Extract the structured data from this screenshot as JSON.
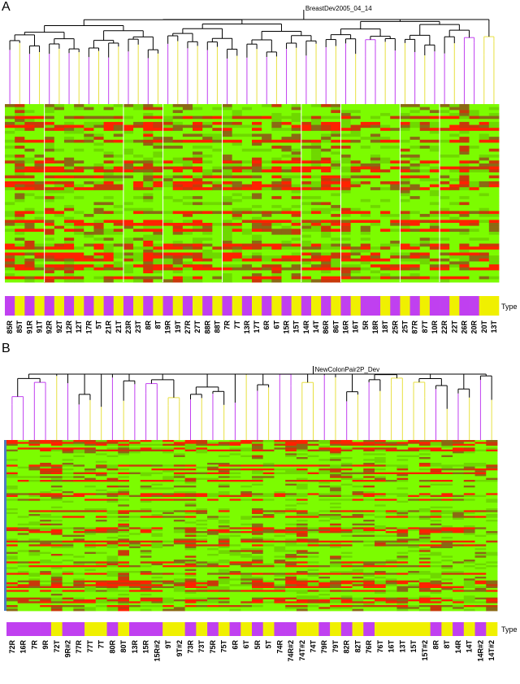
{
  "colors": {
    "heat_low": "#7CFC00",
    "heat_mid": "#8B6914",
    "heat_high": "#FF2200",
    "type_R": "#C040F0",
    "type_T": "#F0F000",
    "branch_R": "#C040F0",
    "branch_T": "#E8E040",
    "tree": "#000000"
  },
  "panels": [
    {
      "letter": "A",
      "dendrogram_title": "BreastDev2005_04_14",
      "type_label": "Type",
      "seed": 17,
      "samples": [
        "85R",
        "85T",
        "91R",
        "91T",
        "92R",
        "92T",
        "12R",
        "12T",
        "17R",
        "5T",
        "21R",
        "21T",
        "23R",
        "23T",
        "8R",
        "8T",
        "19R",
        "19T",
        "27R",
        "27T",
        "88R",
        "88T",
        "7R",
        "7T",
        "13R",
        "17T",
        "6R",
        "6T",
        "15R",
        "15T",
        "14R",
        "14T",
        "86R",
        "86T",
        "16R",
        "16T",
        "5R",
        "18R",
        "18T",
        "25R",
        "25T",
        "87R",
        "87T",
        "10R",
        "22R",
        "22T",
        "26R",
        "20R",
        "20T",
        "13T"
      ]
    },
    {
      "letter": "B",
      "dendrogram_title": "NewColonPair2P_Dev",
      "type_label": "Type",
      "seed": 53,
      "samples": [
        "72R",
        "16R",
        "7R",
        "9R",
        "72T",
        "9R#2",
        "77R",
        "77T",
        "7T",
        "80R",
        "80T",
        "13R",
        "15R",
        "15R#2",
        "9T",
        "9T#2",
        "73R",
        "73T",
        "75R",
        "75T",
        "6R",
        "6T",
        "5R",
        "5T",
        "74R",
        "74R#2",
        "74T#2",
        "74T",
        "79R",
        "79T",
        "82R",
        "82T",
        "76R",
        "76T",
        "16T",
        "13T",
        "15T",
        "15T#2",
        "8R",
        "8T",
        "14R",
        "14T",
        "14R#2",
        "14T#2"
      ]
    }
  ]
}
